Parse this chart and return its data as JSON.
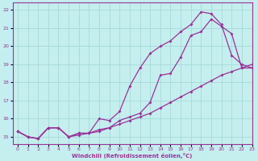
{
  "xlabel": "Windchill (Refroidissement éolien,°C)",
  "xlim": [
    -0.5,
    23
  ],
  "ylim": [
    14.6,
    22.4
  ],
  "xticks": [
    0,
    1,
    2,
    3,
    4,
    5,
    6,
    7,
    8,
    9,
    10,
    11,
    12,
    13,
    14,
    15,
    16,
    17,
    18,
    19,
    20,
    21,
    22,
    23
  ],
  "yticks": [
    15,
    16,
    17,
    18,
    19,
    20,
    21,
    22
  ],
  "bg_color": "#c5eeee",
  "grid_color": "#aadddd",
  "line_color": "#993399",
  "line1_x": [
    0,
    1,
    2,
    3,
    4,
    5,
    6,
    7,
    8,
    9,
    10,
    11,
    12,
    13,
    14,
    15,
    16,
    17,
    18,
    19,
    20,
    21,
    22,
    23
  ],
  "line1_y": [
    15.3,
    15.0,
    14.9,
    15.5,
    15.5,
    15.0,
    15.1,
    15.2,
    15.3,
    15.5,
    15.7,
    15.9,
    16.1,
    16.3,
    16.6,
    16.9,
    17.2,
    17.5,
    17.8,
    18.1,
    18.4,
    18.6,
    18.8,
    19.0
  ],
  "line2_x": [
    0,
    1,
    2,
    3,
    4,
    5,
    6,
    7,
    8,
    9,
    10,
    11,
    12,
    13,
    14,
    15,
    16,
    17,
    18,
    19,
    20,
    21,
    22,
    23
  ],
  "line2_y": [
    15.3,
    15.0,
    14.9,
    15.5,
    15.5,
    15.0,
    15.2,
    15.2,
    15.4,
    15.5,
    15.9,
    16.1,
    16.3,
    16.9,
    18.4,
    18.5,
    19.4,
    20.6,
    20.8,
    21.5,
    21.1,
    20.7,
    18.8,
    18.8
  ],
  "line3_x": [
    0,
    1,
    2,
    3,
    4,
    5,
    6,
    7,
    8,
    9,
    10,
    11,
    12,
    13,
    14,
    15,
    16,
    17,
    18,
    19,
    20,
    21,
    22,
    23
  ],
  "line3_y": [
    15.3,
    15.0,
    14.9,
    15.5,
    15.5,
    15.0,
    15.2,
    15.2,
    16.0,
    15.9,
    16.4,
    17.8,
    18.8,
    19.6,
    20.0,
    20.3,
    20.8,
    21.2,
    21.9,
    21.8,
    21.2,
    19.5,
    19.0,
    18.8
  ]
}
